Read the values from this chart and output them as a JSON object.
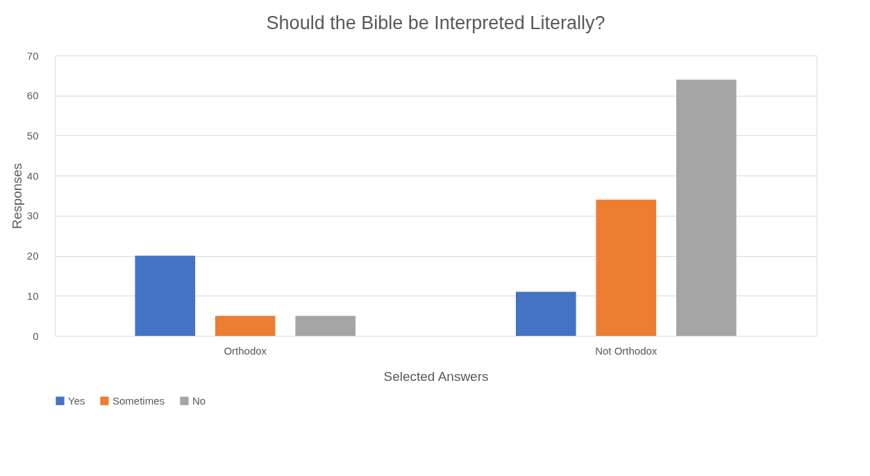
{
  "chart_data": {
    "type": "bar",
    "title": "Should the Bible be Interpreted Literally?",
    "xlabel": "Selected Answers",
    "ylabel": "Responses",
    "categories": [
      "Orthodox",
      "Not Orthodox"
    ],
    "series": [
      {
        "name": "Yes",
        "color": "#4472c4",
        "values": [
          20,
          11
        ]
      },
      {
        "name": "Sometimes",
        "color": "#ed7d31",
        "values": [
          5,
          34
        ]
      },
      {
        "name": "No",
        "color": "#a5a5a5",
        "values": [
          5,
          64
        ]
      }
    ],
    "ylim": [
      0,
      70
    ],
    "yticks": [
      0,
      10,
      20,
      30,
      40,
      50,
      60,
      70
    ],
    "grid": "y",
    "legend": "bottom"
  }
}
